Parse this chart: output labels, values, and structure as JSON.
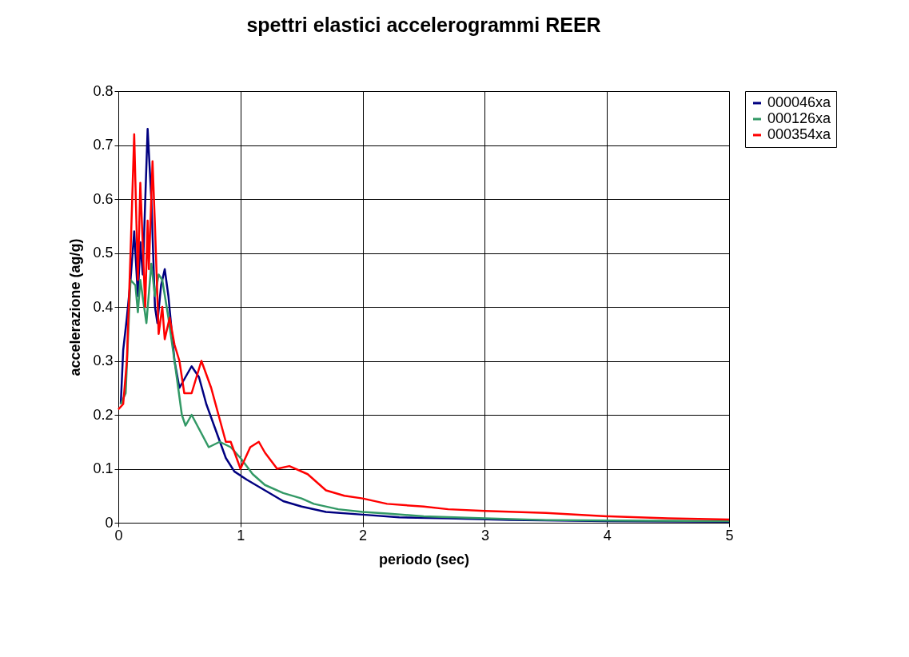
{
  "chart_data": {
    "type": "line",
    "title": "spettri elastici accelerogrammi REER",
    "xlabel": "periodo (sec)",
    "ylabel": "accelerazione (ag/g)",
    "xlim": [
      0,
      5
    ],
    "xticks": [
      0,
      1,
      2,
      3,
      4,
      5
    ],
    "ylim": [
      0,
      0.8
    ],
    "yticks": [
      0,
      0.1,
      0.2,
      0.3,
      0.4,
      0.5,
      0.6,
      0.7,
      0.8
    ],
    "grid": true,
    "legend": "right",
    "marker": "none",
    "line_style": "solid",
    "series": [
      {
        "name": "000046xa",
        "color": "#000080",
        "x": [
          0.02,
          0.04,
          0.07,
          0.1,
          0.13,
          0.16,
          0.18,
          0.2,
          0.24,
          0.27,
          0.3,
          0.32,
          0.35,
          0.38,
          0.41,
          0.46,
          0.5,
          0.55,
          0.6,
          0.66,
          0.72,
          0.8,
          0.88,
          0.95,
          1.05,
          1.2,
          1.35,
          1.5,
          1.7,
          2.0,
          2.3,
          2.7,
          3.2,
          4.0,
          5.0
        ],
        "values": [
          0.22,
          0.32,
          0.38,
          0.45,
          0.54,
          0.42,
          0.52,
          0.46,
          0.73,
          0.6,
          0.4,
          0.37,
          0.44,
          0.47,
          0.42,
          0.3,
          0.25,
          0.27,
          0.29,
          0.27,
          0.22,
          0.17,
          0.12,
          0.095,
          0.08,
          0.06,
          0.04,
          0.03,
          0.02,
          0.015,
          0.01,
          0.008,
          0.005,
          0.003,
          0.002
        ]
      },
      {
        "name": "000126xa",
        "color": "#339966",
        "x": [
          0.02,
          0.06,
          0.1,
          0.14,
          0.16,
          0.18,
          0.23,
          0.27,
          0.3,
          0.33,
          0.36,
          0.41,
          0.46,
          0.52,
          0.55,
          0.6,
          0.67,
          0.74,
          0.83,
          0.92,
          1.0,
          1.1,
          1.2,
          1.35,
          1.5,
          1.6,
          1.8,
          2.0,
          2.2,
          2.5,
          3.0,
          3.5,
          4.0,
          5.0
        ],
        "values": [
          0.22,
          0.24,
          0.45,
          0.44,
          0.39,
          0.45,
          0.37,
          0.48,
          0.42,
          0.46,
          0.45,
          0.38,
          0.3,
          0.2,
          0.18,
          0.2,
          0.17,
          0.14,
          0.15,
          0.14,
          0.12,
          0.09,
          0.07,
          0.055,
          0.045,
          0.035,
          0.025,
          0.02,
          0.017,
          0.012,
          0.008,
          0.005,
          0.004,
          0.003
        ]
      },
      {
        "name": "000354xa",
        "color": "#ff0000",
        "x": [
          0.0,
          0.04,
          0.07,
          0.1,
          0.13,
          0.16,
          0.18,
          0.22,
          0.24,
          0.25,
          0.28,
          0.3,
          0.33,
          0.36,
          0.38,
          0.42,
          0.46,
          0.5,
          0.54,
          0.6,
          0.68,
          0.76,
          0.82,
          0.88,
          0.92,
          1.0,
          1.08,
          1.15,
          1.2,
          1.3,
          1.4,
          1.55,
          1.7,
          1.85,
          2.0,
          2.2,
          2.5,
          2.7,
          3.0,
          3.5,
          4.0,
          4.5,
          5.0
        ],
        "values": [
          0.21,
          0.22,
          0.3,
          0.5,
          0.72,
          0.45,
          0.63,
          0.4,
          0.56,
          0.47,
          0.67,
          0.55,
          0.35,
          0.4,
          0.34,
          0.38,
          0.33,
          0.3,
          0.24,
          0.24,
          0.3,
          0.25,
          0.2,
          0.15,
          0.15,
          0.1,
          0.14,
          0.15,
          0.13,
          0.1,
          0.105,
          0.09,
          0.06,
          0.05,
          0.045,
          0.035,
          0.03,
          0.025,
          0.022,
          0.018,
          0.012,
          0.008,
          0.006
        ]
      }
    ]
  }
}
